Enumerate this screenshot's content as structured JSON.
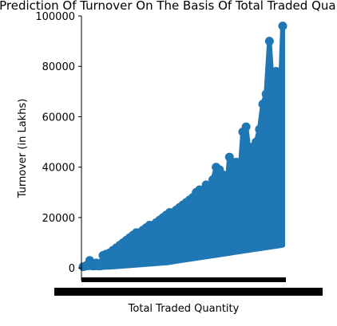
{
  "chart_data": {
    "type": "line",
    "title": "Prediction Of Turnover On The Basis Of Total Traded Quantity",
    "xlabel": "Total Traded Quantity",
    "ylabel": "Turnover (in Lakhs)",
    "ylim": [
      -5000,
      100000
    ],
    "yticks": [
      0,
      20000,
      40000,
      60000,
      80000,
      100000
    ],
    "ytick_labels": [
      "0",
      "20000",
      "40000",
      "60000",
      "80000",
      "100000"
    ],
    "x_tick_labels_note": "dense overlapping categorical tick labels (illegible)",
    "grid": false,
    "legend": "none",
    "colors": {
      "series": "#1f77b4",
      "axes": "#000000"
    },
    "series": [
      {
        "x_index": [
          0,
          1,
          2,
          3,
          4,
          5,
          6,
          7,
          8,
          9,
          10,
          11,
          12,
          13,
          14,
          15,
          16,
          17,
          18,
          19,
          20,
          21,
          22,
          23,
          24,
          25,
          26,
          27,
          28,
          29,
          30,
          31,
          32,
          33,
          34,
          35,
          36,
          37,
          38,
          39,
          40,
          41,
          42,
          43,
          44,
          45,
          46,
          47,
          48,
          49,
          50,
          51,
          52,
          53,
          54,
          55,
          56,
          57,
          58,
          59,
          60
        ],
        "values": [
          500,
          1000,
          3000,
          1500,
          2000,
          1000,
          5000,
          5500,
          6000,
          7000,
          8000,
          9000,
          10000,
          11000,
          12000,
          13000,
          14000,
          14000,
          15000,
          16000,
          17000,
          17000,
          18000,
          19000,
          20000,
          21000,
          22000,
          22000,
          23000,
          24000,
          25000,
          26000,
          27000,
          28000,
          30000,
          31000,
          31000,
          33000,
          32000,
          35000,
          40000,
          39000,
          37000,
          30000,
          44000,
          38000,
          42000,
          35000,
          54000,
          56000,
          45000,
          48000,
          50000,
          55000,
          65000,
          69000,
          90000,
          70000,
          78000,
          60000,
          96000
        ],
        "lows": [
          0,
          0,
          200,
          0,
          100,
          0,
          200,
          300,
          300,
          400,
          500,
          600,
          700,
          800,
          900,
          1000,
          1100,
          1200,
          1300,
          1400,
          1500,
          1600,
          1700,
          1800,
          1900,
          2000,
          2200,
          2400,
          2600,
          2800,
          3000,
          3200,
          3400,
          3600,
          3800,
          4000,
          4200,
          4400,
          4600,
          4800,
          5000,
          5200,
          5400,
          5600,
          5800,
          6000,
          6200,
          6400,
          6600,
          6800,
          7000,
          7200,
          7400,
          7600,
          7800,
          8000,
          8200,
          8400,
          8600,
          8800,
          9000
        ]
      }
    ]
  }
}
